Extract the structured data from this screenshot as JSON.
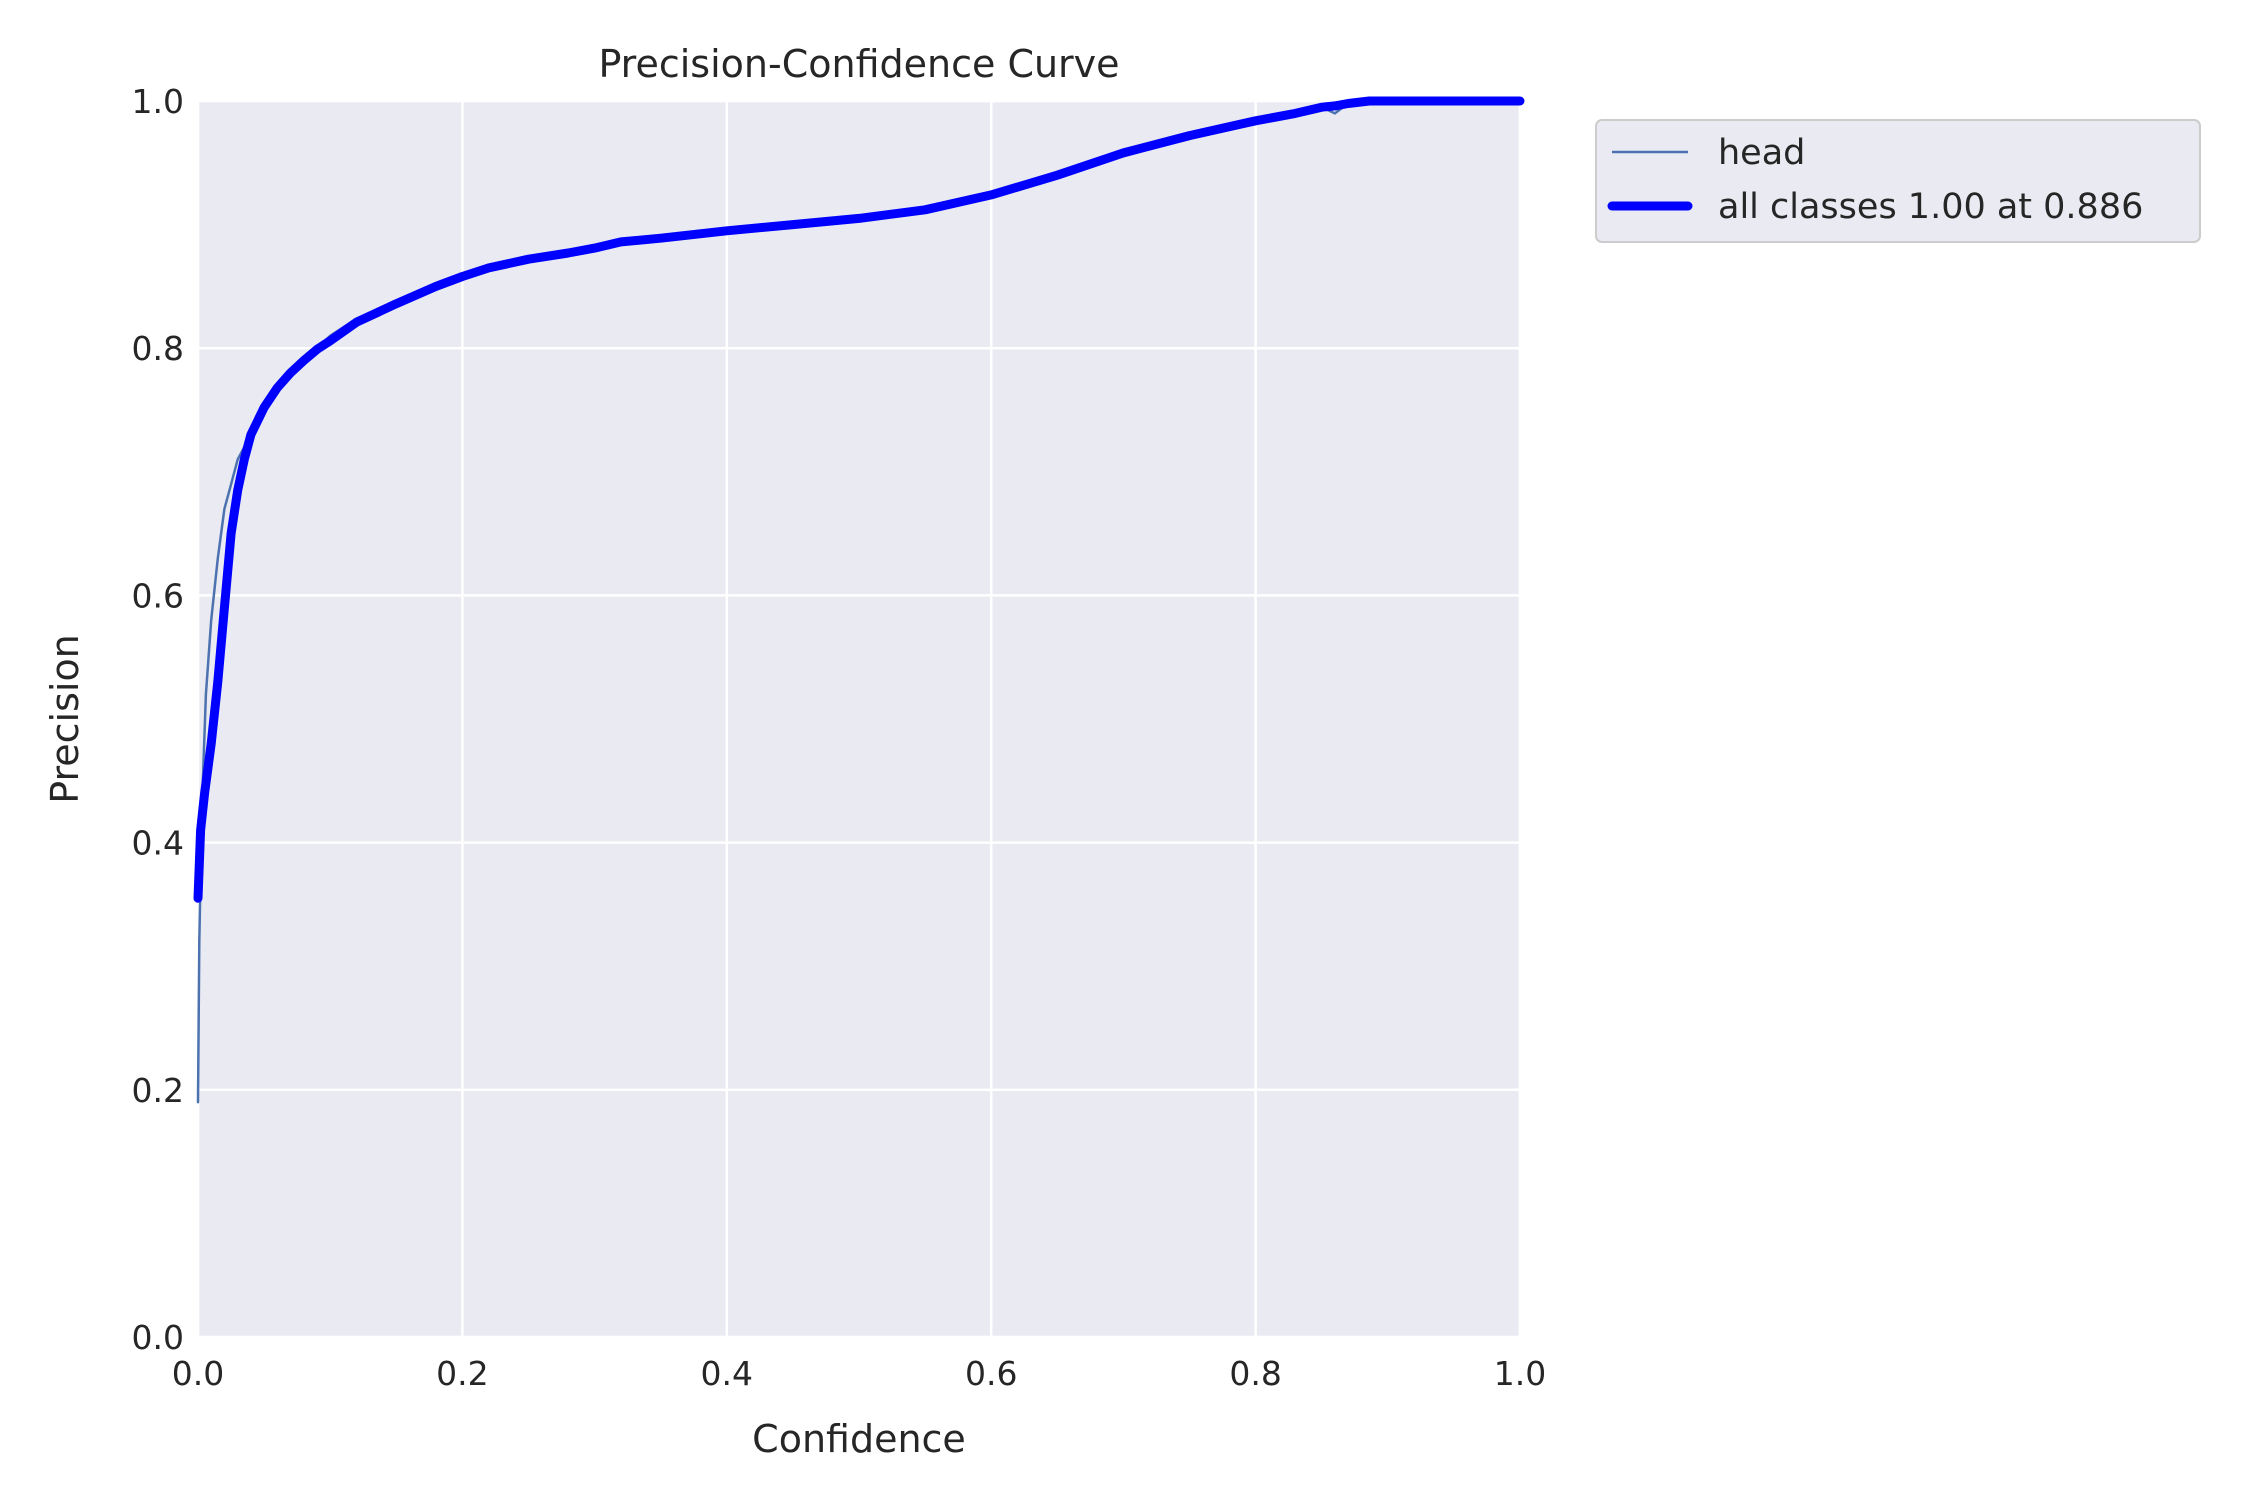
{
  "chart_data": {
    "type": "line",
    "title": "Precision-Confidence Curve",
    "xlabel": "Confidence",
    "ylabel": "Precision",
    "xlim": [
      0,
      1
    ],
    "ylim": [
      0,
      1
    ],
    "x_ticks": [
      "0.0",
      "0.2",
      "0.4",
      "0.6",
      "0.8",
      "1.0"
    ],
    "y_ticks": [
      "0.0",
      "0.2",
      "0.4",
      "0.6",
      "0.8",
      "1.0"
    ],
    "grid": true,
    "legend_position": "outside-top-right",
    "colors": {
      "plot_background": "#eaeaf2",
      "grid": "#ffffff",
      "head": "#4c72b0",
      "all_classes": "#0000ff"
    },
    "series": [
      {
        "name": "head",
        "x": [
          0.0,
          0.001,
          0.003,
          0.006,
          0.01,
          0.015,
          0.02,
          0.025,
          0.03,
          0.035,
          0.04,
          0.05,
          0.06,
          0.07,
          0.08,
          0.09,
          0.1,
          0.12,
          0.15,
          0.18,
          0.2,
          0.22,
          0.25,
          0.28,
          0.3,
          0.32,
          0.35,
          0.4,
          0.45,
          0.5,
          0.55,
          0.6,
          0.65,
          0.7,
          0.75,
          0.8,
          0.83,
          0.85,
          0.86,
          0.87,
          0.886,
          0.9,
          0.95,
          1.0
        ],
        "y": [
          0.19,
          0.32,
          0.43,
          0.52,
          0.58,
          0.63,
          0.67,
          0.69,
          0.71,
          0.72,
          0.735,
          0.755,
          0.77,
          0.78,
          0.79,
          0.8,
          0.81,
          0.824,
          0.838,
          0.852,
          0.86,
          0.866,
          0.872,
          0.878,
          0.882,
          0.887,
          0.89,
          0.895,
          0.9,
          0.906,
          0.913,
          0.925,
          0.94,
          0.958,
          0.972,
          0.985,
          0.99,
          0.995,
          0.99,
          0.998,
          1.0,
          1.0,
          1.0,
          1.0
        ]
      },
      {
        "name": "all classes 1.00 at 0.886",
        "x": [
          0.0,
          0.002,
          0.005,
          0.01,
          0.015,
          0.02,
          0.025,
          0.03,
          0.035,
          0.04,
          0.05,
          0.06,
          0.07,
          0.08,
          0.09,
          0.1,
          0.12,
          0.15,
          0.18,
          0.2,
          0.22,
          0.25,
          0.28,
          0.3,
          0.32,
          0.35,
          0.4,
          0.45,
          0.5,
          0.55,
          0.6,
          0.65,
          0.7,
          0.75,
          0.8,
          0.83,
          0.85,
          0.86,
          0.87,
          0.886,
          0.9,
          0.95,
          1.0
        ],
        "y": [
          0.355,
          0.41,
          0.44,
          0.48,
          0.53,
          0.59,
          0.65,
          0.685,
          0.71,
          0.73,
          0.752,
          0.768,
          0.78,
          0.79,
          0.799,
          0.806,
          0.821,
          0.836,
          0.85,
          0.858,
          0.865,
          0.872,
          0.877,
          0.881,
          0.886,
          0.889,
          0.895,
          0.9,
          0.905,
          0.912,
          0.924,
          0.94,
          0.958,
          0.972,
          0.984,
          0.99,
          0.995,
          0.996,
          0.998,
          1.0,
          1.0,
          1.0,
          1.0
        ]
      }
    ]
  }
}
